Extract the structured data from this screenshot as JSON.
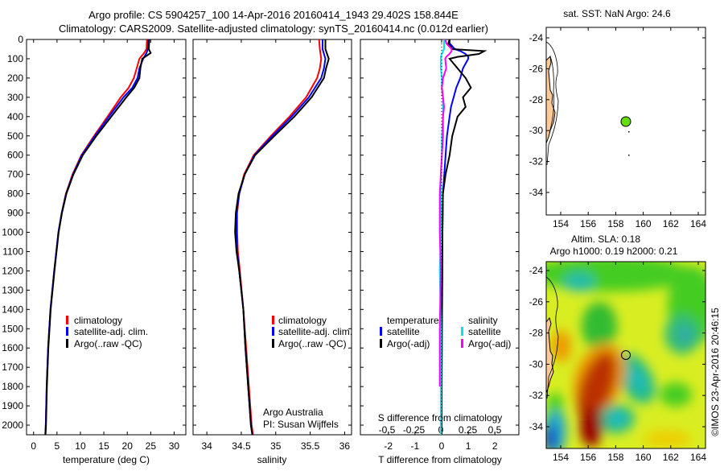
{
  "title": {
    "line1": "Argo profile: CS 5904257_100 14-Apr-2016 20160414_1943 29.402S 158.844E",
    "line2": "Climatology: CARS2009. Satellite-adjusted climatology: synTS_20160414.nc (0.012d earlier)"
  },
  "colors": {
    "climatology": "#ff0000",
    "satellite": "#0000ff",
    "argo": "#000000",
    "sal_satellite": "#00e5ee",
    "sal_argo": "#ff00ff",
    "land": "#ffcc99",
    "float_marker": "#66dd00"
  },
  "chart_data": [
    {
      "type": "line",
      "id": "temperature",
      "xlabel": "temperature (deg C)",
      "ylabel": "depth",
      "xlim": [
        -1.5,
        32.5
      ],
      "ylim": [
        2050,
        0
      ],
      "xticks": [
        0,
        5,
        10,
        15,
        20,
        25,
        30
      ],
      "yticks": [
        0,
        100,
        200,
        300,
        400,
        500,
        600,
        700,
        800,
        900,
        1000,
        1100,
        1200,
        1300,
        1400,
        1500,
        1600,
        1700,
        1800,
        1900,
        2000
      ],
      "legend": [
        "climatology",
        "satellite-adj. clim.",
        "Argo(..raw -QC)"
      ],
      "depth": [
        0,
        50,
        70,
        100,
        150,
        200,
        250,
        300,
        400,
        500,
        600,
        700,
        800,
        900,
        1000,
        1200,
        1400,
        1600,
        1800,
        2000,
        2050
      ],
      "series": [
        {
          "name": "climatology",
          "values": [
            24.2,
            24.1,
            23.6,
            22.6,
            22.0,
            21.4,
            20.3,
            18.6,
            15.8,
            12.9,
            10.2,
            8.3,
            6.9,
            6.0,
            5.3,
            4.4,
            3.6,
            3.1,
            2.8,
            2.6,
            2.5
          ]
        },
        {
          "name": "satellite-adj. clim.",
          "values": [
            24.5,
            24.4,
            24.1,
            23.4,
            22.6,
            22.2,
            21.1,
            19.2,
            16.1,
            13.1,
            10.3,
            8.4,
            6.95,
            6.0,
            5.3,
            4.4,
            3.6,
            3.1,
            2.8,
            2.6,
            2.5
          ]
        },
        {
          "name": "Argo(..raw -QC)",
          "values": [
            24.7,
            24.6,
            25.0,
            23.2,
            22.8,
            22.6,
            21.5,
            19.8,
            16.6,
            13.4,
            10.5,
            8.5,
            7.0,
            6.05,
            5.35,
            4.45,
            3.65,
            3.15,
            2.85,
            2.65,
            2.55
          ]
        }
      ]
    },
    {
      "type": "line",
      "id": "salinity",
      "xlabel": "salinity",
      "xlim": [
        33.8,
        36.1
      ],
      "ylim": [
        2050,
        0
      ],
      "xticks": [
        34,
        34.5,
        35,
        35.5,
        36
      ],
      "legend": [
        "climatology",
        "satellite-adj. clim.",
        "Argo(..raw -QC)"
      ],
      "annotation": [
        "Argo Australia",
        "PI: Susan Wijffels"
      ],
      "depth": [
        0,
        50,
        100,
        150,
        200,
        300,
        400,
        500,
        600,
        700,
        800,
        900,
        1000,
        1100,
        1200,
        1400,
        1600,
        1800,
        2000,
        2050
      ],
      "series": [
        {
          "name": "climatology",
          "values": [
            35.63,
            35.64,
            35.66,
            35.64,
            35.6,
            35.44,
            35.2,
            34.93,
            34.68,
            34.54,
            34.47,
            34.44,
            34.44,
            34.45,
            34.48,
            34.53,
            34.57,
            34.61,
            34.65,
            34.67
          ]
        },
        {
          "name": "satellite-adj. clim.",
          "values": [
            35.68,
            35.68,
            35.72,
            35.7,
            35.66,
            35.48,
            35.23,
            34.95,
            34.69,
            34.55,
            34.47,
            34.43,
            34.43,
            34.44,
            34.47,
            34.53,
            34.56,
            34.6,
            34.64,
            34.66
          ]
        },
        {
          "name": "Argo(..raw -QC)",
          "values": [
            35.72,
            35.72,
            35.77,
            35.73,
            35.7,
            35.52,
            35.27,
            34.98,
            34.7,
            34.55,
            34.46,
            34.42,
            34.41,
            34.43,
            34.47,
            34.53,
            34.56,
            34.6,
            34.64,
            34.66
          ]
        }
      ]
    },
    {
      "type": "line",
      "id": "difference",
      "xlabel": "T difference from climatology",
      "x2label": "S difference from climatology",
      "xlim": [
        -3.05,
        2.9
      ],
      "x2lim": [
        -0.5,
        0.5
      ],
      "ylim": [
        2050,
        0
      ],
      "xticks": [
        -2,
        -1,
        0,
        1,
        2
      ],
      "x2ticks": [
        "-0.5",
        "-0.25",
        "0",
        "0.25",
        "0.5"
      ],
      "legend_temperature": {
        "heading": "temperature",
        "items": [
          "satellite",
          "Argo(-adj)"
        ]
      },
      "legend_salinity": {
        "heading": "salinity",
        "items": [
          "satellite",
          "Argo(-adj)"
        ]
      },
      "depth": [
        0,
        20,
        50,
        60,
        75,
        90,
        100,
        150,
        200,
        250,
        300,
        350,
        400,
        500,
        600,
        700,
        800,
        1000,
        1200,
        1500,
        1800,
        2000,
        2050
      ],
      "series": [
        {
          "name": "T satellite",
          "axis": "T",
          "values": [
            0.3,
            0.3,
            0.5,
            0.7,
            0.9,
            1.0,
            1.0,
            0.8,
            0.7,
            0.55,
            0.45,
            0.35,
            0.3,
            0.2,
            0.15,
            0.1,
            0.05,
            0.03,
            0.02,
            0.01,
            0.0,
            0.0,
            0.0
          ]
        },
        {
          "name": "T Argo(-adj)",
          "axis": "T",
          "values": [
            0.3,
            0.25,
            0.4,
            1.6,
            1.4,
            0.6,
            0.3,
            0.6,
            0.9,
            1.1,
            0.8,
            0.9,
            0.6,
            0.4,
            0.3,
            0.15,
            0.05,
            0.03,
            0.03,
            0.01,
            0.0,
            0.0,
            0.0
          ]
        },
        {
          "name": "S satellite",
          "axis": "S",
          "values": [
            0.03,
            0.03,
            0.03,
            0.02,
            0.01,
            0.0,
            0.0,
            0.0,
            0.01,
            0.01,
            0.02,
            0.02,
            0.02,
            0.01,
            0.01,
            0.0,
            0.0,
            0.0,
            -0.01,
            0.0,
            0.0,
            0.0,
            0.0
          ]
        },
        {
          "name": "S Argo(-adj)",
          "axis": "S",
          "values": [
            0.04,
            0.05,
            0.1,
            0.1,
            0.08,
            0.05,
            0.04,
            0.05,
            0.02,
            0.01,
            0.02,
            0.03,
            0.02,
            0.02,
            0.01,
            0.0,
            -0.01,
            -0.01,
            0.0,
            -0.01,
            -0.01,
            null,
            null
          ]
        }
      ]
    }
  ],
  "maps": {
    "sst": {
      "title": "sat. SST: NaN Argo: 24.6",
      "lon_ticks": [
        "154",
        "156",
        "158",
        "160",
        "162",
        "164"
      ],
      "lat_ticks": [
        "-24",
        "-26",
        "-28",
        "-30",
        "-32",
        "-34"
      ],
      "float_position": {
        "lon": 158.844,
        "lat": -29.402
      }
    },
    "sla": {
      "title1": "Altim. SLA: 0.18",
      "title2": "Argo h1000: 0.19 h2000: 0.21",
      "lon_ticks": [
        "154",
        "156",
        "158",
        "160",
        "162",
        "164"
      ],
      "lat_ticks": [
        "-24",
        "-26",
        "-28",
        "-30",
        "-32",
        "-34"
      ],
      "float_position": {
        "lon": 158.844,
        "lat": -29.402
      }
    }
  },
  "footer": {
    "credit": "©IMOS 23-Apr-2016 20:46:15"
  }
}
